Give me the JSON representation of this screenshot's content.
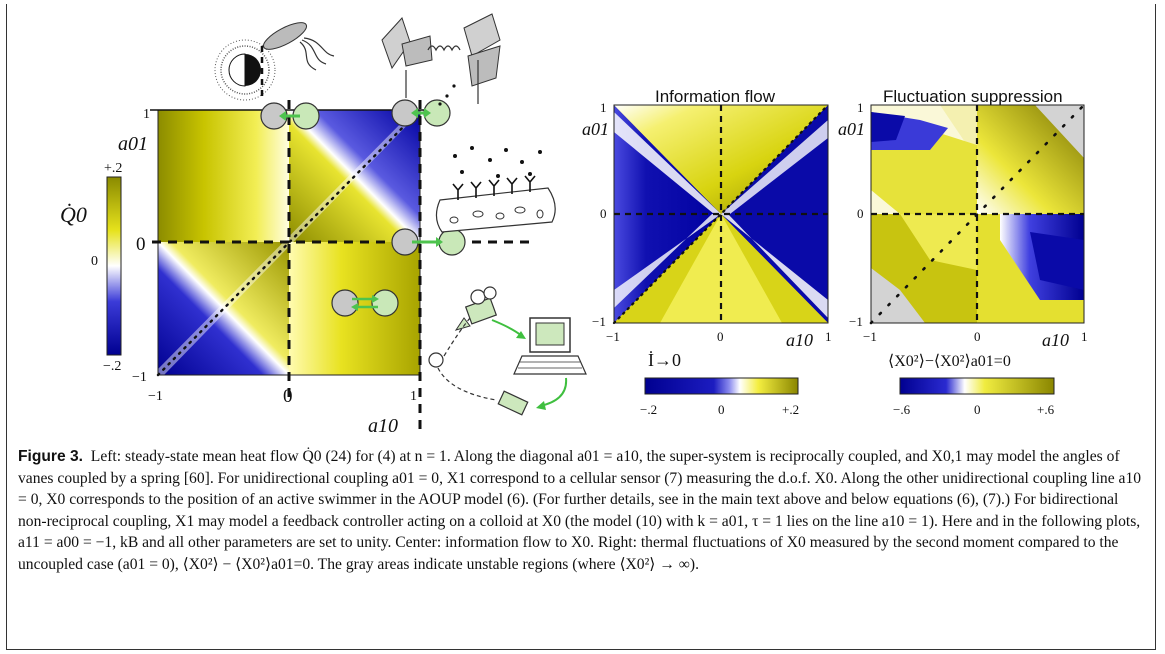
{
  "figure": {
    "left_panel": {
      "axis_y_label": "a01",
      "axis_x_label": "a10",
      "tick_labels": {
        "y_top": "1",
        "y_bottom": "−1",
        "x_left": "−1",
        "x_mid": "0",
        "x_right": "1"
      },
      "colorbar": {
        "label": "Q̇0",
        "ticks": [
          "+.2",
          "0",
          "−.2"
        ],
        "side_tick": "0"
      },
      "colors": {
        "positive": "#8a8a00",
        "zero": "#ffffff",
        "negative": "#000096"
      }
    },
    "center_panel": {
      "title": "Information flow",
      "axis_y_label": "a01",
      "axis_x_label": "a10",
      "tick_labels": {
        "y_top": "1",
        "y_mid": "0",
        "y_bottom": "−1",
        "x_left": "−1",
        "x_mid": "0",
        "x_right": "1"
      },
      "colorbar": {
        "label": "İ→0",
        "ticks": [
          "−.2",
          "0",
          "+.2"
        ]
      }
    },
    "right_panel": {
      "title": "Fluctuation suppression",
      "axis_y_label": "a01",
      "axis_x_label": "a10",
      "tick_labels": {
        "y_top": "1",
        "y_mid": "0",
        "y_bottom": "−1",
        "x_left": "−1",
        "x_mid": "0",
        "x_right": "1"
      },
      "colorbar": {
        "label": "⟨X0²⟩−⟨X0²⟩a01=0",
        "ticks": [
          "−.6",
          "0",
          "+.6"
        ]
      },
      "unstable_color": "#d3d3d3"
    }
  },
  "caption": {
    "label": "Figure 3.",
    "text": "Left: steady-state mean heat flow Q̇0 (24) for (4) at n = 1. Along the diagonal a01 = a10, the super-system is reciprocally coupled, and X0,1 may model the angles of vanes coupled by a spring [60]. For unidirectional coupling a01 = 0, X1 correspond to a cellular sensor (7) measuring the d.o.f. X0. Along the other unidirectional coupling line a10 = 0, X0 corresponds to the position of an active swimmer in the AOUP model (6). (For further details, see in the main text above and below equations (6), (7).) For bidirectional non-reciprocal coupling, X1 may model a feedback controller acting on a colloid at X0 (the model (10) with k = a01, τ = 1 lies on the line a10 = 1). Here and in the following plots, a11 = a00 = −1, kB and all other parameters are set to unity. Center: information flow to X0. Right: thermal fluctuations of X0 measured by the second moment compared to the uncoupled case (a01 = 0), ⟨X0²⟩ − ⟨X0²⟩a01=0. The gray areas indicate unstable regions (where ⟨X0²⟩ → ∞).",
    "parts": {
      "p1": "Left: steady-state mean heat flow ",
      "q0": "Q̇0",
      "r24": "(24)",
      "p2": " for ",
      "r4": "(4)",
      "p3": " at ",
      "p4": ". Along the diagonal ",
      "p5": ", the super-system is reciprocally coupled, and ",
      "p6": " may model the angles of vanes coupled by a spring ",
      "r60": "[60]",
      "p7": ". For unidirectional coupling ",
      "p8": " correspond to a cellular sensor ",
      "r7": "(7)",
      "p9": " measuring the d.o.f. ",
      "p10": ". Along the other unidirectional coupling line ",
      "p11": " corresponds to the position of an active swimmer in the AOUP model ",
      "r6": "(6)",
      "p12": ". (For further details, see in the main text above and below equations ",
      "r6b": "(6)",
      "r7b": "(7)",
      "p13": ".) For bidirectional non-reciprocal coupling, ",
      "p14": " may model a feedback controller acting on a colloid at ",
      "p15": " (the model ",
      "r10": "(10)",
      "p16": " with ",
      "p17": " lies on the line ",
      "p18": "). Here and in the following plots, ",
      "p19": " and all other parameters are set to unity. Center: information flow to ",
      "p20": ". Right: thermal fluctuations of ",
      "p21": " measured by the second moment compared to the uncoupled case (",
      "p22": "), ",
      "p23": ". The gray areas indicate unstable regions (where "
    }
  }
}
